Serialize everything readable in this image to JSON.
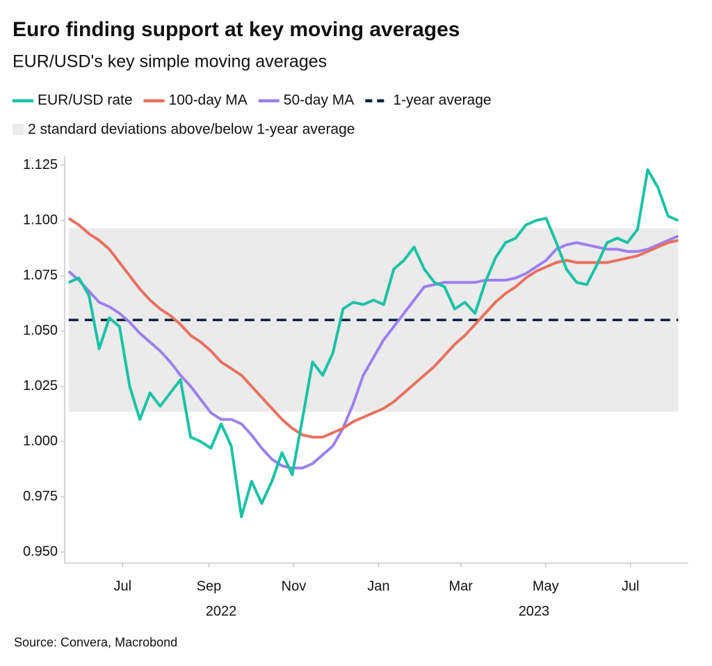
{
  "chart_data": {
    "type": "line",
    "title": "Euro finding support at key moving averages",
    "subtitle": "EUR/USD's key simple moving averages",
    "source": "Source: Convera, Macrobond",
    "x": [
      2022.39,
      2022.41,
      2022.43,
      2022.45,
      2022.47,
      2022.49,
      2022.51,
      2022.53,
      2022.55,
      2022.57,
      2022.59,
      2022.61,
      2022.63,
      2022.65,
      2022.67,
      2022.69,
      2022.71,
      2022.73,
      2022.75,
      2022.77,
      2022.79,
      2022.81,
      2022.83,
      2022.85,
      2022.87,
      2022.89,
      2022.91,
      2022.93,
      2022.95,
      2022.97,
      2022.99,
      2023.01,
      2023.03,
      2023.05,
      2023.07,
      2023.09,
      2023.11,
      2023.13,
      2023.15,
      2023.17,
      2023.19,
      2023.21,
      2023.23,
      2023.25,
      2023.27,
      2023.29,
      2023.31,
      2023.33,
      2023.35,
      2023.37,
      2023.39,
      2023.41,
      2023.43,
      2023.45,
      2023.47,
      2023.49,
      2023.51,
      2023.53,
      2023.55,
      2023.57,
      2023.59
    ],
    "series": [
      {
        "name": "EUR/USD rate",
        "color": "#19c2a6",
        "values": [
          1.072,
          1.074,
          1.066,
          1.042,
          1.056,
          1.052,
          1.025,
          1.01,
          1.022,
          1.016,
          1.022,
          1.028,
          1.002,
          1.0,
          0.997,
          1.008,
          0.998,
          0.966,
          0.982,
          0.972,
          0.982,
          0.995,
          0.985,
          1.01,
          1.036,
          1.03,
          1.04,
          1.06,
          1.063,
          1.062,
          1.064,
          1.062,
          1.078,
          1.082,
          1.088,
          1.078,
          1.072,
          1.07,
          1.06,
          1.063,
          1.058,
          1.072,
          1.083,
          1.09,
          1.092,
          1.098,
          1.1,
          1.101,
          1.09,
          1.078,
          1.072,
          1.071,
          1.08,
          1.09,
          1.092,
          1.09,
          1.096,
          1.123,
          1.115,
          1.102,
          1.1
        ]
      },
      {
        "name": "100-day MA",
        "color": "#e8705f",
        "values": [
          1.101,
          1.098,
          1.094,
          1.091,
          1.087,
          1.081,
          1.075,
          1.069,
          1.064,
          1.06,
          1.057,
          1.053,
          1.048,
          1.045,
          1.041,
          1.036,
          1.033,
          1.03,
          1.025,
          1.02,
          1.015,
          1.01,
          1.006,
          1.003,
          1.002,
          1.002,
          1.004,
          1.006,
          1.009,
          1.011,
          1.013,
          1.015,
          1.018,
          1.022,
          1.026,
          1.03,
          1.034,
          1.039,
          1.044,
          1.048,
          1.053,
          1.058,
          1.063,
          1.067,
          1.07,
          1.074,
          1.077,
          1.079,
          1.081,
          1.082,
          1.081,
          1.081,
          1.081,
          1.081,
          1.082,
          1.083,
          1.084,
          1.086,
          1.088,
          1.09,
          1.091
        ]
      },
      {
        "name": "50-day MA",
        "color": "#9b80ee",
        "values": [
          1.077,
          1.073,
          1.068,
          1.063,
          1.061,
          1.058,
          1.054,
          1.049,
          1.045,
          1.041,
          1.036,
          1.03,
          1.025,
          1.019,
          1.013,
          1.01,
          1.01,
          1.008,
          1.003,
          0.997,
          0.992,
          0.989,
          0.988,
          0.988,
          0.99,
          0.994,
          0.998,
          1.006,
          1.017,
          1.03,
          1.038,
          1.046,
          1.052,
          1.058,
          1.064,
          1.07,
          1.071,
          1.072,
          1.072,
          1.072,
          1.072,
          1.073,
          1.073,
          1.073,
          1.074,
          1.076,
          1.079,
          1.082,
          1.087,
          1.089,
          1.09,
          1.089,
          1.088,
          1.087,
          1.087,
          1.086,
          1.086,
          1.087,
          1.089,
          1.091,
          1.093
        ]
      }
    ],
    "reference_line": {
      "name": "1-year average",
      "value": 1.055,
      "color": "#0d2240"
    },
    "band": {
      "name": "2 standard deviations above/below 1-year average",
      "range": [
        1.0135,
        1.0965
      ],
      "color": "#ebebeb"
    },
    "xlim": [
      2022.382,
      2023.61
    ],
    "xticks": [
      {
        "value": 2022.496,
        "label": "Jul"
      },
      {
        "value": 2022.666,
        "label": "Sep"
      },
      {
        "value": 2022.833,
        "label": "Nov"
      },
      {
        "value": 2023.0,
        "label": "Jan"
      },
      {
        "value": 2023.162,
        "label": "Mar"
      },
      {
        "value": 2023.329,
        "label": "May"
      },
      {
        "value": 2023.496,
        "label": "Jul"
      }
    ],
    "x_group_labels": [
      {
        "value": 2022.69,
        "label": "2022"
      },
      {
        "value": 2023.306,
        "label": "2023"
      }
    ],
    "ylim": [
      0.945,
      1.129
    ],
    "yticks": [
      {
        "value": 0.95,
        "label": "0.950"
      },
      0.975,
      {
        "value": 1.0,
        "label": "1.000"
      },
      1.025,
      {
        "value": 1.05,
        "label": "1.050"
      },
      1.075,
      {
        "value": 1.1,
        "label": "1.100"
      },
      1.125
    ],
    "grid": false
  }
}
